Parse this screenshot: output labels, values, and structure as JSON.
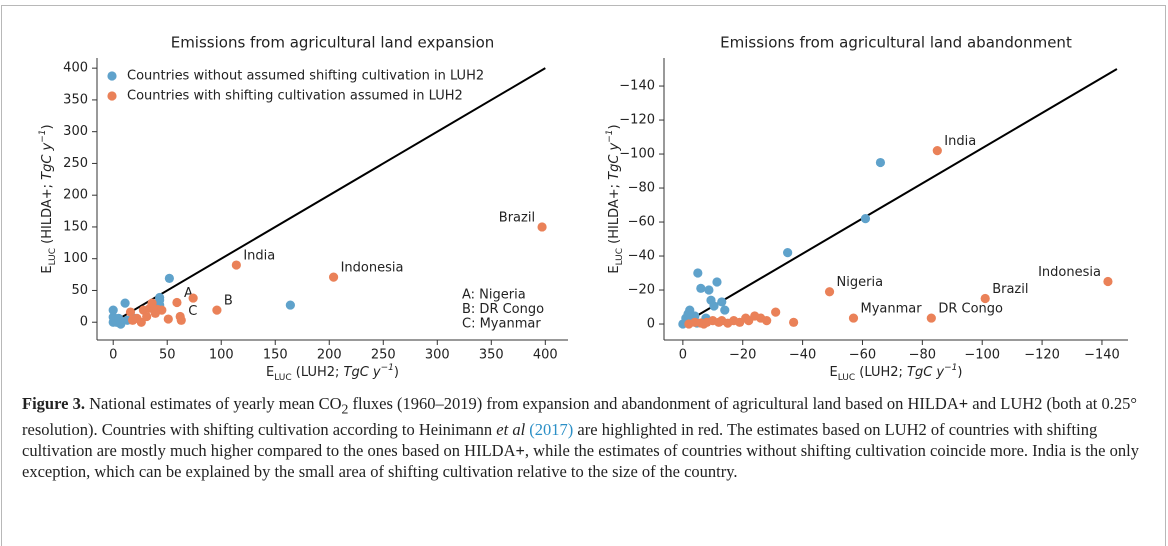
{
  "chart_data": [
    {
      "type": "scatter",
      "title": "Emissions from agricultural land expansion",
      "xlabel": [
        "E",
        "LUC",
        " (LUH2; ",
        "TgC y",
        "−1",
        ")"
      ],
      "ylabel": [
        "E",
        "LUC",
        " (HILDA+; ",
        "TgC y",
        "−1",
        ")"
      ],
      "xlim": [
        -15,
        421
      ],
      "ylim": [
        -28,
        416
      ],
      "xticks": [
        0,
        50,
        100,
        150,
        200,
        250,
        300,
        350,
        400
      ],
      "yticks": [
        0,
        50,
        100,
        150,
        200,
        250,
        300,
        350,
        400
      ],
      "legend": "upper left",
      "note": [
        "A: Nigeria",
        "B: DR Congo",
        "C: Myanmar"
      ],
      "reference_line": {
        "x": [
          0,
          400
        ],
        "y": [
          0,
          400
        ],
        "color": "#000000"
      },
      "series": [
        {
          "name": "Countries without assumed shifting cultivation in LUH2",
          "color": "#5fa2cb",
          "x": [
            0,
            0,
            0,
            3,
            5,
            7,
            11,
            13,
            20,
            43,
            43,
            43,
            52,
            164
          ],
          "values": [
            0,
            8,
            19,
            0,
            6,
            -3,
            30,
            3,
            6,
            35,
            27,
            39,
            69,
            27
          ]
        },
        {
          "name": "Countries with shifting cultivation assumed in LUH2",
          "color": "#ea8158",
          "x": [
            16,
            18,
            22,
            26,
            28,
            31,
            34,
            36,
            39,
            41,
            45,
            51,
            59,
            62,
            63,
            74,
            96,
            114,
            204,
            397
          ],
          "values": [
            16,
            3,
            6,
            0,
            19,
            9,
            22,
            30,
            14,
            20,
            19,
            5,
            31,
            9,
            3,
            38,
            19,
            90,
            71,
            150
          ],
          "labels": [
            null,
            null,
            null,
            null,
            null,
            null,
            null,
            null,
            null,
            null,
            null,
            null,
            "A",
            null,
            "C",
            null,
            "B",
            "India",
            "Indonesia",
            "Brazil"
          ]
        }
      ]
    },
    {
      "type": "scatter",
      "title": "Emissions from agricultural land abandonment",
      "xlabel": [
        "E",
        "LUC",
        " (LUH2; ",
        "TgC y",
        "−1",
        ")"
      ],
      "ylabel": [
        "E",
        "LUC",
        " (HILDA+; ",
        "TgC y",
        "−1",
        ")"
      ],
      "xlim": [
        6.3,
        -148.7
      ],
      "ylim": [
        9.4,
        -156.5
      ],
      "xticks": [
        0,
        {
          "value": -20,
          "label": "−20"
        },
        {
          "value": -40,
          "label": "−40"
        },
        {
          "value": -60,
          "label": "−60"
        },
        {
          "value": -80,
          "label": "−80"
        },
        {
          "value": -100,
          "label": "−100"
        },
        {
          "value": -120,
          "label": "−120"
        },
        {
          "value": -140,
          "label": "−140"
        }
      ],
      "yticks": [
        0,
        {
          "value": -20,
          "label": "−20"
        },
        {
          "value": -40,
          "label": "−40"
        },
        {
          "value": -60,
          "label": "−60"
        },
        {
          "value": -80,
          "label": "−80"
        },
        {
          "value": -100,
          "label": "−100"
        },
        {
          "value": -120,
          "label": "−120"
        },
        {
          "value": -140,
          "label": "−140"
        }
      ],
      "reference_line": {
        "x": [
          0,
          -145
        ],
        "y": [
          0,
          -150
        ],
        "color": "#000000"
      },
      "series": [
        {
          "color": "#5fa2cb",
          "x": [
            0,
            -1,
            -1.7,
            -2.3,
            -3,
            -4,
            -4.7,
            -5,
            -6,
            -7.7,
            -8.7,
            -9.4,
            -10.4,
            -11.4,
            -13,
            -14,
            -35,
            -61,
            -66
          ],
          "values": [
            0,
            -3.5,
            -5.9,
            -8.2,
            -2.4,
            -4.7,
            -0.6,
            -30,
            -21,
            -3.5,
            -20,
            -14,
            -10.6,
            -24.7,
            -13,
            -8.2,
            -42,
            -62,
            -95
          ]
        },
        {
          "color": "#ea8158",
          "x": [
            -2,
            -4,
            -6,
            -7,
            -8,
            -10,
            -12,
            -13,
            -15,
            -17,
            -19,
            -21,
            -22,
            -24,
            -26,
            -28,
            -31,
            -37,
            -49,
            -57,
            -83,
            -85,
            -101,
            -142
          ],
          "values": [
            0,
            -1,
            -0.6,
            0,
            -1,
            -2,
            -1,
            -2,
            -0.5,
            -2,
            -1,
            -3.5,
            -2,
            -4.7,
            -3.5,
            -2,
            -7,
            -1,
            -19,
            -3.5,
            -3.5,
            -102,
            -15,
            -25
          ],
          "labels": [
            null,
            null,
            null,
            null,
            null,
            null,
            null,
            null,
            null,
            null,
            null,
            null,
            null,
            null,
            null,
            null,
            null,
            null,
            "Nigeria",
            "Myanmar",
            "DR Congo",
            "India",
            "Brazil",
            "Indonesia"
          ]
        }
      ]
    }
  ],
  "caption": {
    "parts": [
      "Figure 3.",
      " National estimates of yearly mean CO",
      "2",
      " fluxes (1960–2019) from expansion and abandonment of agricultural land based on HILDA",
      "+",
      " and LUH2 (both at 0.25° resolution). Countries with shifting cultivation according to Heinimann ",
      "et al",
      " (2017)",
      " are highlighted in red. The estimates based on LUH2 of countries with shifting cultivation are mostly much higher compared to the ones based on HILDA",
      "+",
      ", while the estimates of countries without shifting cultivation coincide more. India is the only exception, which can be explained by the small area of shifting cultivation relative to the size of the country."
    ]
  }
}
